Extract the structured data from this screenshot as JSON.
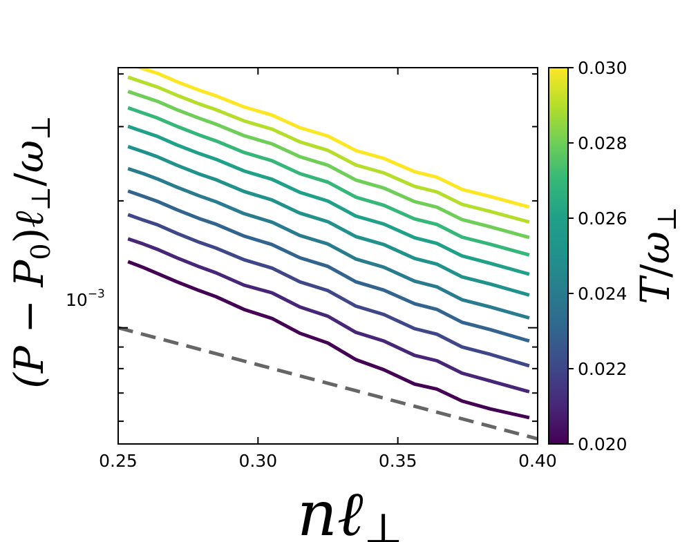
{
  "chart_data": {
    "type": "line",
    "xlabel": "nℓ⊥",
    "ylabel": "(P − P0)ℓ⊥/ω⊥",
    "colorbar_label": "T/ω⊥",
    "xlim": [
      0.25,
      0.4
    ],
    "ylim": [
      0.00053,
      0.00414
    ],
    "yscale": "log",
    "x_ticks": [
      "0.25",
      "0.30",
      "0.35",
      "0.40"
    ],
    "y_tick_label": "10−3",
    "colormap": "viridis",
    "colorbar_range": [
      0.02,
      0.03
    ],
    "colorbar_ticks": [
      "0.020",
      "0.022",
      "0.024",
      "0.026",
      "0.028",
      "0.030"
    ],
    "x": [
      0.2535,
      0.259,
      0.264,
      0.271,
      0.279,
      0.285,
      0.295,
      0.305,
      0.315,
      0.325,
      0.335,
      0.345,
      0.356,
      0.364,
      0.373,
      0.383,
      0.397
    ],
    "series": [
      {
        "T": 0.02,
        "color": "#440154",
        "values": [
          0.001435,
          0.00139,
          0.001345,
          0.001285,
          0.001225,
          0.001185,
          0.001105,
          0.001052,
          0.00097,
          0.00092,
          0.00084,
          0.000795,
          0.000735,
          0.000715,
          0.00067,
          0.000642,
          0.000612
        ]
      },
      {
        "T": 0.021,
        "color": "#482677",
        "values": [
          0.001625,
          0.00158,
          0.001535,
          0.001465,
          0.001395,
          0.00135,
          0.001262,
          0.00121,
          0.00112,
          0.001065,
          0.000975,
          0.00093,
          0.00086,
          0.000835,
          0.00078,
          0.000748,
          0.000705
        ]
      },
      {
        "T": 0.022,
        "color": "#3f4788",
        "values": [
          0.001855,
          0.0018,
          0.001755,
          0.001675,
          0.001595,
          0.001545,
          0.00145,
          0.001385,
          0.001285,
          0.001225,
          0.001125,
          0.001075,
          0.000995,
          0.000965,
          0.0009,
          0.000865,
          0.000812
        ]
      },
      {
        "T": 0.023,
        "color": "#32648e",
        "values": [
          0.00211,
          0.00205,
          0.001995,
          0.001905,
          0.001815,
          0.00176,
          0.00165,
          0.001575,
          0.001465,
          0.001398,
          0.001285,
          0.001228,
          0.00114,
          0.001105,
          0.00103,
          0.00099,
          0.00093
        ]
      },
      {
        "T": 0.024,
        "color": "#297b8e",
        "values": [
          0.002385,
          0.00232,
          0.002255,
          0.002155,
          0.002055,
          0.00199,
          0.001865,
          0.00178,
          0.001655,
          0.00158,
          0.001455,
          0.001392,
          0.00129,
          0.00125,
          0.001165,
          0.00112,
          0.001055
        ]
      },
      {
        "T": 0.025,
        "color": "#21918c",
        "values": [
          0.00269,
          0.002615,
          0.002545,
          0.00243,
          0.002315,
          0.002245,
          0.002105,
          0.00201,
          0.00187,
          0.001785,
          0.001645,
          0.001575,
          0.00146,
          0.001415,
          0.00132,
          0.00127,
          0.001195
        ]
      },
      {
        "T": 0.026,
        "color": "#1fa088",
        "values": [
          0.003005,
          0.00292,
          0.002845,
          0.002715,
          0.00259,
          0.00251,
          0.002355,
          0.00225,
          0.002095,
          0.001998,
          0.00184,
          0.001762,
          0.001635,
          0.001585,
          0.00148,
          0.001422,
          0.00134
        ]
      },
      {
        "T": 0.027,
        "color": "#35b779",
        "values": [
          0.003325,
          0.00323,
          0.003145,
          0.003005,
          0.002865,
          0.002775,
          0.002605,
          0.00249,
          0.00232,
          0.002215,
          0.00204,
          0.001952,
          0.001812,
          0.001758,
          0.00164,
          0.001578,
          0.001488
        ]
      },
      {
        "T": 0.028,
        "color": "#6ece58",
        "values": [
          0.003635,
          0.003535,
          0.003445,
          0.00329,
          0.00314,
          0.00304,
          0.002855,
          0.00273,
          0.002545,
          0.00243,
          0.00224,
          0.002145,
          0.001992,
          0.001932,
          0.001805,
          0.001736,
          0.001637
        ]
      },
      {
        "T": 0.029,
        "color": "#b5de2b",
        "values": [
          0.00393,
          0.00382,
          0.003725,
          0.00356,
          0.003395,
          0.00329,
          0.003095,
          0.00296,
          0.00276,
          0.002635,
          0.002432,
          0.00233,
          0.002165,
          0.0021,
          0.001962,
          0.001888,
          0.001781
        ]
      },
      {
        "T": 0.03,
        "color": "#fde725",
        "values": [
          0.00423,
          0.004115,
          0.004015,
          0.003835,
          0.00366,
          0.00355,
          0.00334,
          0.003195,
          0.002982,
          0.00285,
          0.002632,
          0.002522,
          0.002345,
          0.002275,
          0.002128,
          0.002048,
          0.001933
        ]
      }
    ],
    "reference_line": {
      "style": "dashed",
      "color": "#666666",
      "x": [
        0.25,
        0.4
      ],
      "y": [
        0.001,
        0.000545
      ]
    },
    "grid": false,
    "legend": "none (colorbar on right)"
  }
}
